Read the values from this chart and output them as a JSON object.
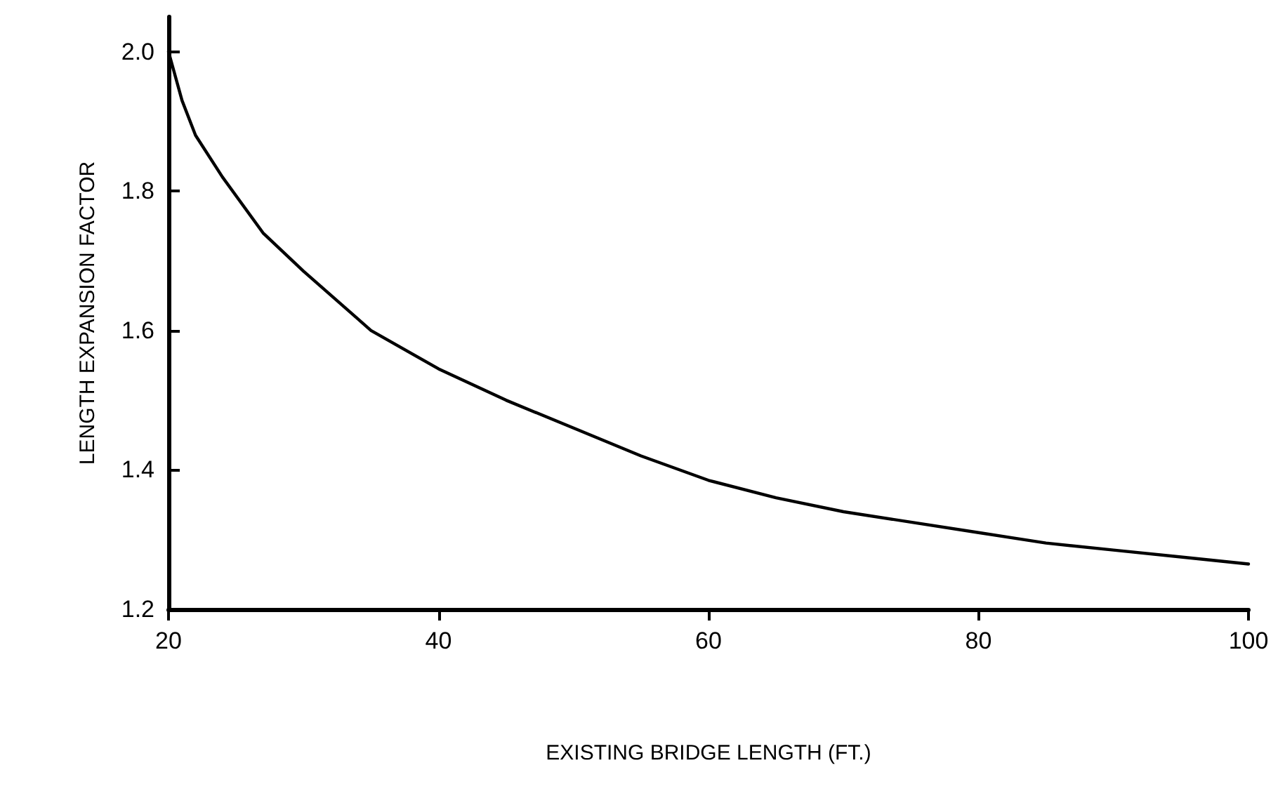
{
  "chart_data": {
    "type": "line",
    "xlabel": "EXISTING BRIDGE LENGTH (FT.)",
    "ylabel": "LENGTH EXPANSION FACTOR",
    "x": [
      20,
      21,
      22,
      24,
      27,
      30,
      35,
      40,
      45,
      50,
      55,
      60,
      65,
      70,
      75,
      80,
      85,
      90,
      95,
      100
    ],
    "series": [
      {
        "color": "#000000",
        "values": [
          2.0,
          1.93,
          1.88,
          1.82,
          1.74,
          1.685,
          1.6,
          1.545,
          1.5,
          1.46,
          1.42,
          1.385,
          1.36,
          1.34,
          1.325,
          1.31,
          1.295,
          1.285,
          1.275,
          1.265
        ]
      }
    ],
    "xlim": [
      20,
      100
    ],
    "xticks": [
      20,
      40,
      60,
      80,
      100
    ],
    "ylim": [
      1.2,
      2.05
    ],
    "yticks": [
      {
        "value": 1.2,
        "label": "1.2"
      },
      {
        "value": 1.4,
        "label": "1.4"
      },
      {
        "value": 1.6,
        "label": "1.6"
      },
      {
        "value": 1.8,
        "label": "1.8"
      },
      {
        "value": 2,
        "label": "2.0"
      }
    ],
    "grid": false,
    "marker": "none",
    "line_style": "solid"
  }
}
